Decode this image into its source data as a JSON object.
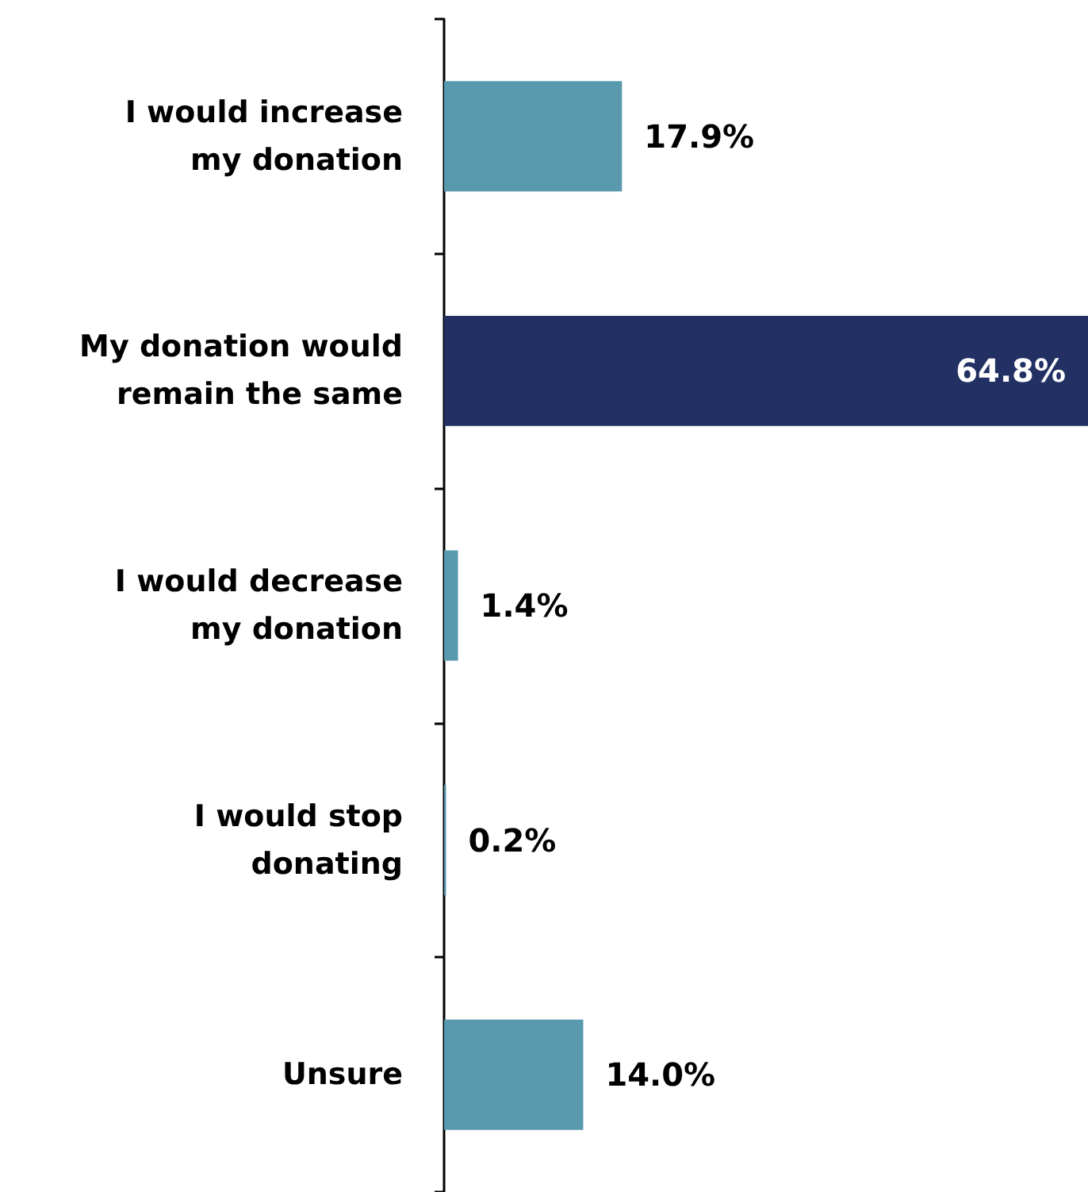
{
  "chart_data": {
    "type": "bar",
    "orientation": "horizontal",
    "categories": [
      "I would increase my donation",
      "My donation would remain the same",
      "I would decrease my donation",
      "I would stop donating",
      "Unsure"
    ],
    "values": [
      17.9,
      64.8,
      1.4,
      0.2,
      14.0
    ],
    "colors": [
      "#5899ae",
      "#223063",
      "#5899ae",
      "#5899ae",
      "#5899ae"
    ],
    "value_labels": [
      "17.9%",
      "64.8%",
      "1.4%",
      "0.2%",
      "14.0%"
    ]
  }
}
